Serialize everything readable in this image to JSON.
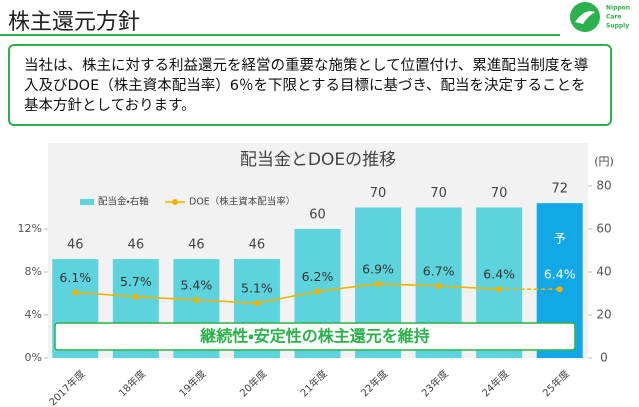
{
  "header": {
    "title": "株主還元方針"
  },
  "logo": {
    "lines": [
      "Nippon",
      "Care",
      "Supply"
    ]
  },
  "policy": {
    "text": "当社は、株主に対する利益還元を経営の重要な施策として位置付け、累進配当制度を導入及びDOE（株主資本配当率）6％を下限とする目標に基づき、配当を決定することを基本方針としております。"
  },
  "chart_data": {
    "type": "bar_line",
    "title": "配当金とDOEの推移",
    "y2_unit_label": "(円)",
    "categories": [
      "2017年度",
      "18年度",
      "19年度",
      "20年度",
      "21年度",
      "22年度",
      "23年度",
      "24年度",
      "25年度"
    ],
    "forecast_labels": [
      null,
      null,
      null,
      null,
      null,
      null,
      null,
      null,
      "予"
    ],
    "series": [
      {
        "name": "配当金・右軸",
        "type": "bar",
        "axis": "y2",
        "color": "#5dd3de",
        "colors": [
          "#5dd3de",
          "#5dd3de",
          "#5dd3de",
          "#5dd3de",
          "#5dd3de",
          "#5dd3de",
          "#5dd3de",
          "#5dd3de",
          "#12a8e8"
        ],
        "values": [
          46,
          46,
          46,
          46,
          60,
          70,
          70,
          70,
          72
        ]
      },
      {
        "name": "DOE（株主資本配当率）",
        "type": "line",
        "axis": "y",
        "color": "#f0b400",
        "values": [
          6.1,
          5.7,
          5.4,
          5.1,
          6.2,
          6.9,
          6.7,
          6.4,
          6.4
        ],
        "value_labels": [
          "6.1%",
          "5.7%",
          "5.4%",
          "5.1%",
          "6.2%",
          "6.9%",
          "6.7%",
          "6.4%",
          "6.4%"
        ]
      }
    ],
    "ylim": [
      0,
      16
    ],
    "yticks": [
      {
        "value": 0,
        "label": "0%"
      },
      {
        "value": 4,
        "label": "4%"
      },
      {
        "value": 8,
        "label": "8%"
      },
      {
        "value": 12,
        "label": "12%"
      }
    ],
    "y2lim": [
      0,
      80
    ],
    "y2ticks": [
      0,
      20,
      40,
      60,
      80
    ],
    "banner": "継続性・安定性の株主還元を維持"
  }
}
